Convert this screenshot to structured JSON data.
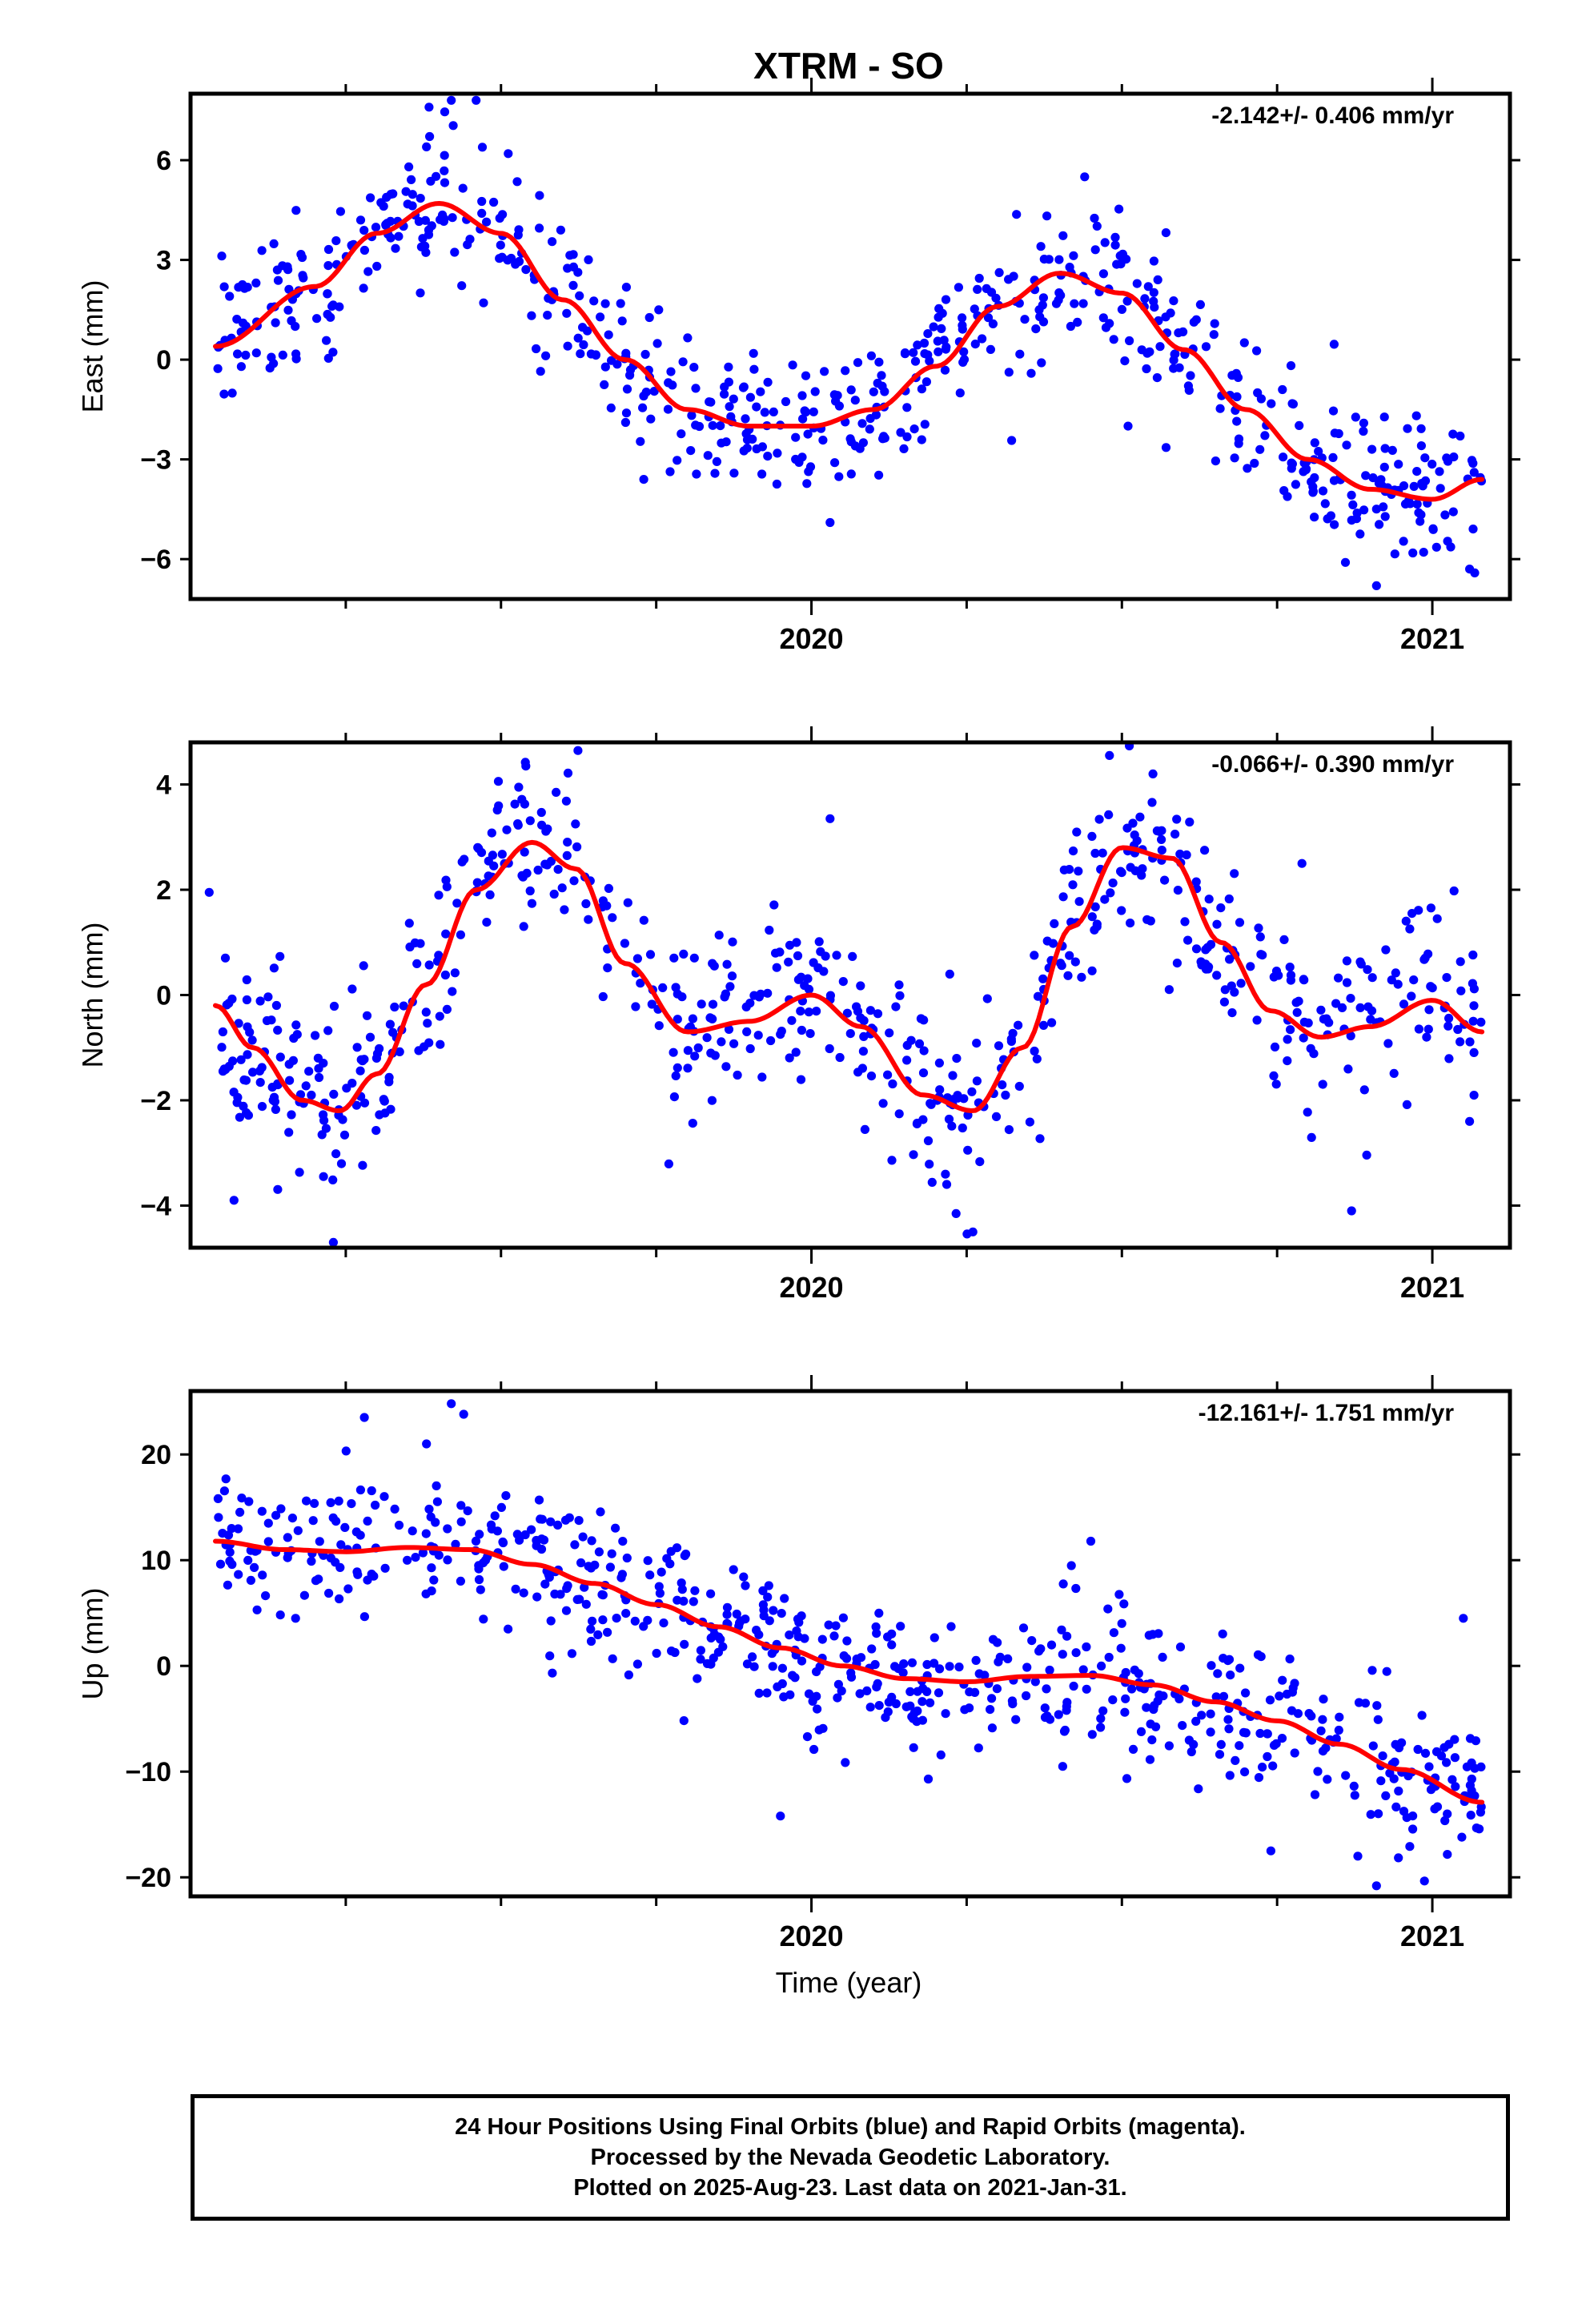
{
  "figure": {
    "title": "XTRM - SO",
    "xlabel": "Time (year)"
  },
  "colors": {
    "points": "#0000ff",
    "fit": "#ff0000",
    "axes": "#000000"
  },
  "chart_data": [
    {
      "type": "scatter",
      "ylabel": "East (mm)",
      "rate_label": "-2.142+/- 0.406 mm/yr",
      "xlim": [
        2019.0,
        2021.125
      ],
      "ylim": [
        -7.2,
        8.0
      ],
      "yticks": [
        -6,
        -3,
        0,
        3,
        6
      ],
      "ytick_labels": [
        "−6",
        "−3",
        "0",
        "3",
        "6"
      ],
      "xticks_major": [
        2020,
        2021
      ],
      "xtick_labels": [
        "2020",
        "2021"
      ],
      "xticks_minor": [
        2019.25,
        2019.5,
        2019.75,
        2020.25,
        2020.5,
        2020.75
      ],
      "data_range": [
        2019.04,
        2021.08
      ],
      "seed": 11,
      "fit_x": [
        2019.04,
        2019.2,
        2019.3,
        2019.4,
        2019.5,
        2019.6,
        2019.7,
        2019.8,
        2019.9,
        2020.0,
        2020.1,
        2020.2,
        2020.3,
        2020.4,
        2020.5,
        2020.6,
        2020.7,
        2020.8,
        2020.9,
        2021.0,
        2021.08
      ],
      "fit_y": [
        0.4,
        2.2,
        3.8,
        4.7,
        3.8,
        1.8,
        0.0,
        -1.5,
        -2.0,
        -2.0,
        -1.5,
        -0.2,
        1.6,
        2.6,
        2.0,
        0.3,
        -1.5,
        -3.0,
        -3.9,
        -4.2,
        -3.6
      ],
      "noise": 1.1,
      "outliers": [
        [
          2019.42,
          7.8
        ],
        [
          2019.46,
          7.8
        ],
        [
          2019.38,
          6.4
        ],
        [
          2020.44,
          5.5
        ],
        [
          2020.03,
          -4.9
        ],
        [
          2020.86,
          -6.1
        ],
        [
          2020.91,
          -6.8
        ],
        [
          2021.06,
          -6.3
        ],
        [
          2019.73,
          -3.6
        ],
        [
          2020.51,
          -2.0
        ]
      ]
    },
    {
      "type": "scatter",
      "ylabel": "North (mm)",
      "rate_label": "-0.066+/- 0.390 mm/yr",
      "xlim": [
        2019.0,
        2021.125
      ],
      "ylim": [
        -4.8,
        4.8
      ],
      "yticks": [
        -4,
        -2,
        0,
        2,
        4
      ],
      "ytick_labels": [
        "−4",
        "−2",
        "0",
        "2",
        "4"
      ],
      "xticks_major": [
        2020,
        2021
      ],
      "xtick_labels": [
        "2020",
        "2021"
      ],
      "xticks_minor": [
        2019.25,
        2019.5,
        2019.75,
        2020.25,
        2020.5,
        2020.75
      ],
      "data_range": [
        2019.04,
        2021.08
      ],
      "seed": 23,
      "fit_x": [
        2019.04,
        2019.1,
        2019.18,
        2019.24,
        2019.3,
        2019.38,
        2019.46,
        2019.55,
        2019.62,
        2019.7,
        2019.8,
        2019.9,
        2020.0,
        2020.08,
        2020.18,
        2020.26,
        2020.34,
        2020.42,
        2020.5,
        2020.58,
        2020.66,
        2020.74,
        2020.82,
        2020.9,
        2021.0,
        2021.08
      ],
      "fit_y": [
        -0.2,
        -1.0,
        -2.0,
        -2.2,
        -1.5,
        0.2,
        2.0,
        2.9,
        2.4,
        0.6,
        -0.7,
        -0.5,
        0.0,
        -0.6,
        -1.9,
        -2.2,
        -1.0,
        1.3,
        2.8,
        2.6,
        1.0,
        -0.3,
        -0.8,
        -0.6,
        -0.1,
        -0.7
      ],
      "noise": 0.85,
      "outliers": [
        [
          2019.03,
          1.95
        ],
        [
          2019.07,
          -3.9
        ],
        [
          2019.23,
          -4.7
        ],
        [
          2019.54,
          4.35
        ],
        [
          2019.62,
          3.25
        ],
        [
          2020.03,
          3.35
        ],
        [
          2020.26,
          -4.5
        ],
        [
          2020.48,
          4.55
        ],
        [
          2020.55,
          4.2
        ],
        [
          2020.87,
          -4.1
        ],
        [
          2020.79,
          2.5
        ],
        [
          2021.06,
          -2.4
        ]
      ]
    },
    {
      "type": "scatter",
      "ylabel": "Up (mm)",
      "rate_label": "-12.161+/- 1.751 mm/yr",
      "xlim": [
        2019.0,
        2021.125
      ],
      "ylim": [
        -21.8,
        26.0
      ],
      "yticks": [
        -20,
        -10,
        0,
        10,
        20
      ],
      "ytick_labels": [
        "−20",
        "−10",
        "0",
        "10",
        "20"
      ],
      "xticks_major": [
        2020,
        2021
      ],
      "xtick_labels": [
        "2020",
        "2021"
      ],
      "xticks_minor": [
        2019.25,
        2019.5,
        2019.75,
        2020.25,
        2020.5,
        2020.75
      ],
      "data_range": [
        2019.04,
        2021.08
      ],
      "seed": 37,
      "fit_x": [
        2019.04,
        2019.15,
        2019.25,
        2019.35,
        2019.45,
        2019.55,
        2019.65,
        2019.75,
        2019.85,
        2019.95,
        2020.05,
        2020.15,
        2020.25,
        2020.35,
        2020.45,
        2020.55,
        2020.65,
        2020.75,
        2020.85,
        2020.95,
        2021.08
      ],
      "fit_y": [
        11.8,
        11.0,
        10.8,
        11.2,
        11.0,
        9.6,
        7.8,
        5.8,
        3.7,
        1.7,
        0.0,
        -1.2,
        -1.5,
        -1.0,
        -0.9,
        -1.8,
        -3.4,
        -5.2,
        -7.4,
        -9.8,
        -12.9
      ],
      "noise": 3.4,
      "outliers": [
        [
          2019.28,
          23.5
        ],
        [
          2019.42,
          24.8
        ],
        [
          2019.44,
          23.8
        ],
        [
          2019.38,
          21.0
        ],
        [
          2019.95,
          -14.2
        ],
        [
          2020.74,
          -17.5
        ],
        [
          2020.88,
          -18.0
        ],
        [
          2020.91,
          -20.8
        ],
        [
          2020.45,
          11.8
        ],
        [
          2021.05,
          4.5
        ]
      ]
    }
  ],
  "footer": {
    "line1": "24 Hour Positions Using Final Orbits (blue) and Rapid Orbits (magenta).",
    "line2": "Processed by the Nevada Geodetic Laboratory.",
    "line3": "Plotted on 2025-Aug-23. Last data on 2021-Jan-31."
  }
}
